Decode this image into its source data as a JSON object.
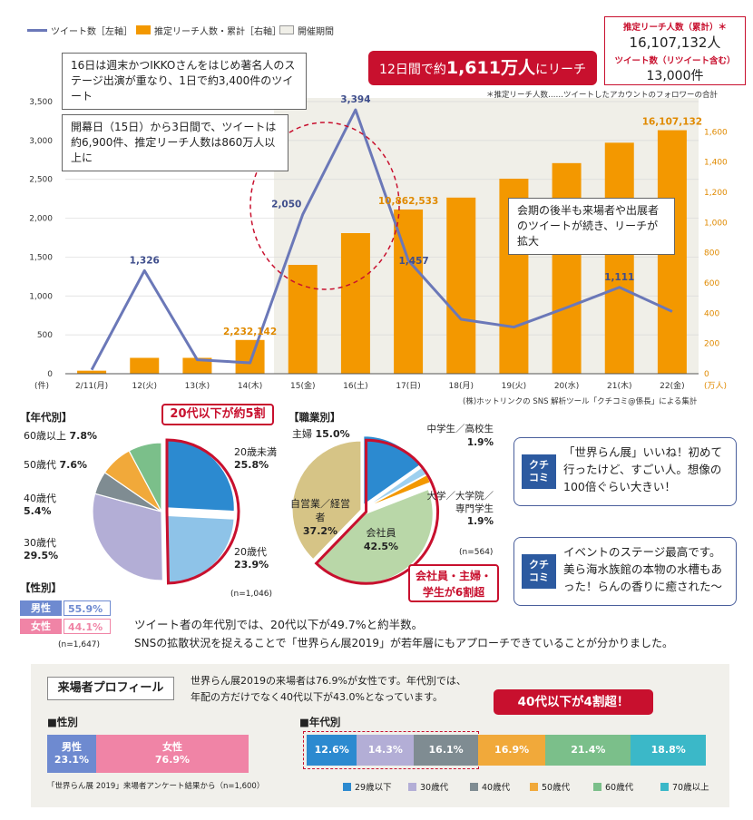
{
  "legend": {
    "tweets": "ツイート数［左軸］",
    "reach": "推定リーチ人数・累計［右軸］",
    "period": "開催期間"
  },
  "totals": {
    "reach_label": "推定リーチ人数（累計）＊",
    "reach_value": "16,107,132人",
    "tweets_label": "ツイート数（リツイート含む）",
    "tweets_value": "13,000件"
  },
  "banner": {
    "pre": "12日間で約",
    "strong": "1,611万人",
    "post": "にリーチ"
  },
  "footnote_reach": "＊推定リーチ人数……ツイートしたアカウントのフォロワーの合計",
  "callouts": {
    "c1": "16日は週末かつIKKOさんをはじめ著名人のステージ出演が重なり、1日で約3,400件のツイート",
    "c2": "開幕日（15日）から3日間で、ツイートは約6,900件、推定リーチ人数は860万人以上に",
    "c3": "会期の後半も来場者や出展者のツイートが続き、リーチが拡大"
  },
  "source_note": "(株)ホットリンクの SNS 解析ツール「クチコミ@係長」による集計",
  "chart_data": [
    {
      "type": "bar",
      "categories": [
        "2/11(月)",
        "12(火)",
        "13(水)",
        "14(木)",
        "15(金)",
        "16(土)",
        "17(日)",
        "18(月)",
        "19(火)",
        "20(水)",
        "21(木)",
        "22(金)"
      ],
      "series": [
        {
          "name": "推定リーチ人数・累計［右軸］",
          "type": "bar",
          "axis": "right",
          "unit": "万人",
          "values": [
            20,
            105,
            105,
            223.2142,
            720,
            930,
            1086.2533,
            1165,
            1290,
            1393,
            1528,
            1610.7132
          ],
          "data_labels": {
            "3": "2,232,142",
            "6": "10,862,533",
            "11": "16,107,132"
          }
        },
        {
          "name": "ツイート数［左軸］",
          "type": "line",
          "axis": "left",
          "unit": "件",
          "values": [
            50,
            1326,
            180,
            140,
            2050,
            3394,
            1457,
            700,
            600,
            850,
            1111,
            800
          ],
          "data_labels": {
            "1": "1,326",
            "4": "2,050",
            "5": "3,394",
            "6": "1,457",
            "10": "1,111"
          }
        }
      ],
      "yleft": {
        "ylim": [
          0,
          3500
        ],
        "ticks": [
          "0",
          "500",
          "1,000",
          "1,500",
          "2,000",
          "2,500",
          "3,000",
          "3,500"
        ],
        "unit": "(件)"
      },
      "yright": {
        "ylim": [
          0,
          1800
        ],
        "ticks": [
          "0",
          "200",
          "400",
          "600",
          "800",
          "1,000",
          "1,200",
          "1,400",
          "1,600"
        ],
        "unit": "(万人)"
      },
      "period_shaded": [
        "15(金)",
        "22(金)"
      ],
      "colors": {
        "bar": "#f39800",
        "line": "#6b78b8",
        "period": "#f0efe8"
      }
    },
    {
      "type": "pie",
      "title": "【年代別】",
      "labels": [
        "20歳未満",
        "20歳代",
        "30歳代",
        "40歳代",
        "50歳代",
        "60歳以上"
      ],
      "values": [
        25.8,
        23.9,
        29.5,
        5.4,
        7.6,
        7.8
      ],
      "value_text": [
        "25.8%",
        "23.9%",
        "29.5%",
        "5.4%",
        "7.6%",
        "7.8%"
      ],
      "colors": [
        "#2c8ad0",
        "#8ec3e8",
        "#b3aed6",
        "#7f8c92",
        "#f1a93a",
        "#7bbf8a"
      ],
      "n": "(n=1,046)",
      "highlight": "20代以下が約5割"
    },
    {
      "type": "pie",
      "title": "【職業別】",
      "labels": [
        "中学生／高校生",
        "大学／大学院／専門学生",
        "会社員",
        "自営業／経営者",
        "主婦"
      ],
      "values": [
        1.9,
        1.9,
        42.5,
        37.2,
        15.0
      ],
      "value_text": [
        "1.9%",
        "1.9%",
        "42.5%",
        "37.2%",
        "15.0%"
      ],
      "order_note": "clockwise from top: 主婦, 中学生／高校生, 大学／大学院／専門学生, 会社員, 自営業／経営者",
      "colors": [
        "#9ed0ef",
        "#f39800",
        "#b9d7a8",
        "#d6c486",
        "#2c8ad0"
      ],
      "n": "(n=564)",
      "highlight": "会社員・主婦・学生が6割超"
    },
    {
      "type": "bar",
      "title": "【性別】",
      "categories": [
        "男性",
        "女性"
      ],
      "values": [
        55.9,
        44.1
      ],
      "value_text": [
        "55.9%",
        "44.1%"
      ],
      "n": "(n=1,647)"
    },
    {
      "type": "bar",
      "title": "■性別",
      "stacked": true,
      "categories": [
        "男性",
        "女性"
      ],
      "values": [
        23.1,
        76.9
      ],
      "value_text": [
        "23.1%",
        "76.9%"
      ],
      "colors": [
        "#6e8ad0",
        "#f084a6"
      ]
    },
    {
      "type": "bar",
      "title": "■年代別",
      "stacked": true,
      "categories": [
        "29歳以下",
        "30歳代",
        "40歳代",
        "50歳代",
        "60歳代",
        "70歳以上"
      ],
      "values": [
        12.6,
        14.3,
        16.1,
        16.9,
        21.4,
        18.8
      ],
      "value_text": [
        "12.6%",
        "14.3%",
        "16.1%",
        "16.9%",
        "21.4%",
        "18.8%"
      ],
      "colors": [
        "#2c8ad0",
        "#b3aed6",
        "#7f8c92",
        "#f1a93a",
        "#7bbf8a",
        "#3bb8c8"
      ]
    }
  ],
  "pie_age": {
    "title": "【年代別】",
    "highlight": "20代以下が約5割",
    "labels": {
      "u20": "20歳未満",
      "u20_v": "25.8%",
      "a20": "20歳代",
      "a20_v": "23.9%",
      "a30": "30歳代",
      "a30_v": "29.5%",
      "a40": "40歳代",
      "a40_v": "5.4%",
      "a50": "50歳代",
      "a50_v": "7.6%",
      "a60": "60歳以上",
      "a60_v": "7.8%"
    },
    "n": "(n=1,046)"
  },
  "pie_job": {
    "title": "【職業別】",
    "highlight_line1": "会社員・主婦・",
    "highlight_line2": "学生が6割超",
    "labels": {
      "housewife": "主婦",
      "housewife_v": "15.0%",
      "hs": "中学生／高校生",
      "hs_v": "1.9%",
      "univ1": "大学／大学院／",
      "univ2": "専門学生",
      "univ_v": "1.9%",
      "office": "会社員",
      "office_v": "42.5%",
      "self": "自営業／経営者",
      "self_v": "37.2%"
    },
    "n": "(n=564)"
  },
  "gender_tw": {
    "title": "【性別】",
    "male": "男性",
    "male_v": "55.9%",
    "female": "女性",
    "female_v": "44.1%",
    "n": "(n=1,647)"
  },
  "kuchikomi": {
    "tag1": "クチ",
    "tag2": "コミ",
    "q1": "「世界らん展」いいね！初めて行ったけど、すごい人。想像の100倍ぐらい大きい！",
    "q2": "イベントのステージ最高です。美ら海水族館の本物の水槽もあった！らんの香りに癒された〜"
  },
  "summary": {
    "line1": "ツイート者の年代別では、20代以下が49.7%と約半数。",
    "line2": "SNSの拡散状況を捉えることで「世界らん展2019」が若年層にもアプローチできていることが分かりました。"
  },
  "profile": {
    "title": "来場者プロフィール",
    "desc1": "世界らん展2019の来場者は76.9%が女性です。年代別では、",
    "desc2": "年配の方だけでなく40代以下が43.0%となっています。",
    "callout": "40代以下が4割超！",
    "gender_title": "■性別",
    "age_title": "■年代別",
    "male": "男性",
    "male_v": "23.1%",
    "female": "女性",
    "female_v": "76.9%",
    "source": "「世界らん展 2019」来場者アンケート結果から（n=1,600）",
    "age_values": [
      "12.6%",
      "14.3%",
      "16.1%",
      "16.9%",
      "21.4%",
      "18.8%"
    ],
    "age_legend": [
      "29歳以下",
      "30歳代",
      "40歳代",
      "50歳代",
      "60歳代",
      "70歳以上"
    ]
  }
}
